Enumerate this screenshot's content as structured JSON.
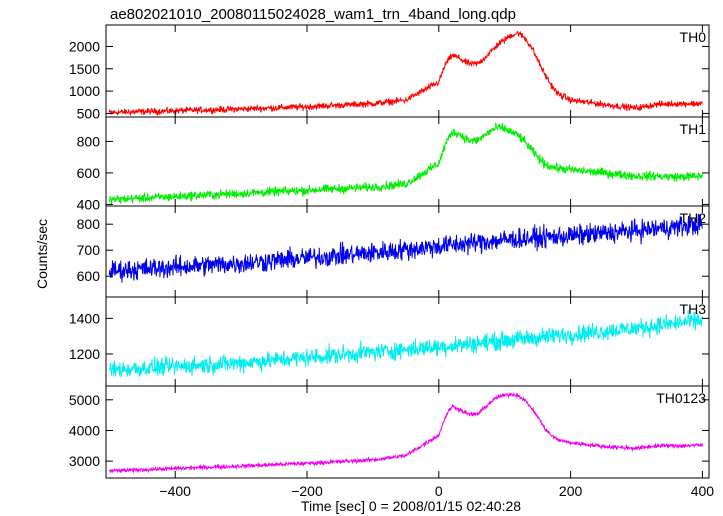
{
  "chart_data": {
    "type": "line",
    "title": "ae802021010_20080115024028_wam1_trn_4band_long.qdp",
    "xlabel": "Time [sec] 0 = 2008/01/15 02:40:28",
    "ylabel": "Counts/sec",
    "xlim": [
      -505,
      410
    ],
    "x_ticks": [
      -400,
      -200,
      0,
      200,
      400
    ],
    "grid": false,
    "panels": [
      {
        "name": "TH0",
        "color": "#ff0000",
        "ylim": [
          420,
          2480
        ],
        "y_ticks": [
          500,
          1000,
          1500,
          2000
        ],
        "noise": 50,
        "x": [
          -500,
          -400,
          -300,
          -200,
          -100,
          -50,
          0,
          10,
          20,
          30,
          40,
          50,
          60,
          70,
          80,
          90,
          100,
          110,
          120,
          130,
          140,
          150,
          160,
          170,
          180,
          200,
          250,
          300,
          330,
          360,
          400
        ],
        "y": [
          520,
          560,
          600,
          650,
          720,
          800,
          1200,
          1600,
          1800,
          1750,
          1650,
          1600,
          1620,
          1750,
          1900,
          2050,
          2150,
          2250,
          2300,
          2200,
          2000,
          1700,
          1400,
          1150,
          950,
          800,
          700,
          620,
          700,
          720,
          720
        ]
      },
      {
        "name": "TH1",
        "color": "#00ee00",
        "ylim": [
          390,
          955
        ],
        "y_ticks": [
          400,
          600,
          800
        ],
        "noise": 20,
        "x": [
          -500,
          -400,
          -300,
          -200,
          -100,
          -50,
          0,
          10,
          20,
          30,
          40,
          50,
          60,
          70,
          80,
          90,
          100,
          110,
          120,
          130,
          140,
          150,
          160,
          170,
          180,
          200,
          250,
          300,
          330,
          360,
          400
        ],
        "y": [
          430,
          450,
          470,
          490,
          510,
          530,
          660,
          780,
          860,
          850,
          820,
          800,
          810,
          840,
          870,
          890,
          880,
          860,
          840,
          800,
          750,
          700,
          660,
          640,
          630,
          620,
          600,
          580,
          580,
          575,
          580
        ]
      },
      {
        "name": "TH2",
        "color": "#0000ee",
        "ylim": [
          520,
          870
        ],
        "y_ticks": [
          600,
          700,
          800
        ],
        "noise": 28,
        "x": [
          -500,
          -300,
          -100,
          0,
          100,
          200,
          300,
          400
        ],
        "y": [
          620,
          650,
          690,
          715,
          740,
          755,
          775,
          800
        ]
      },
      {
        "name": "TH3",
        "color": "#00eeee",
        "ylim": [
          1020,
          1520
        ],
        "y_ticks": [
          1200,
          1400
        ],
        "noise": 35,
        "x": [
          -500,
          -300,
          -100,
          0,
          100,
          200,
          300,
          400
        ],
        "y": [
          1110,
          1150,
          1210,
          1240,
          1275,
          1310,
          1345,
          1390
        ]
      },
      {
        "name": "TH0123",
        "color": "#ee00ee",
        "ylim": [
          2450,
          5450
        ],
        "y_ticks": [
          3000,
          4000,
          5000
        ],
        "noise": 45,
        "x": [
          -500,
          -400,
          -300,
          -200,
          -100,
          -50,
          0,
          10,
          20,
          30,
          40,
          50,
          60,
          70,
          80,
          90,
          100,
          110,
          120,
          130,
          140,
          150,
          160,
          170,
          180,
          200,
          250,
          300,
          330,
          360,
          400
        ],
        "y": [
          2680,
          2760,
          2840,
          2930,
          3040,
          3180,
          3850,
          4450,
          4800,
          4700,
          4580,
          4520,
          4550,
          4750,
          4950,
          5100,
          5150,
          5180,
          5150,
          5000,
          4750,
          4450,
          4100,
          3850,
          3700,
          3600,
          3480,
          3420,
          3500,
          3500,
          3520
        ]
      }
    ]
  }
}
